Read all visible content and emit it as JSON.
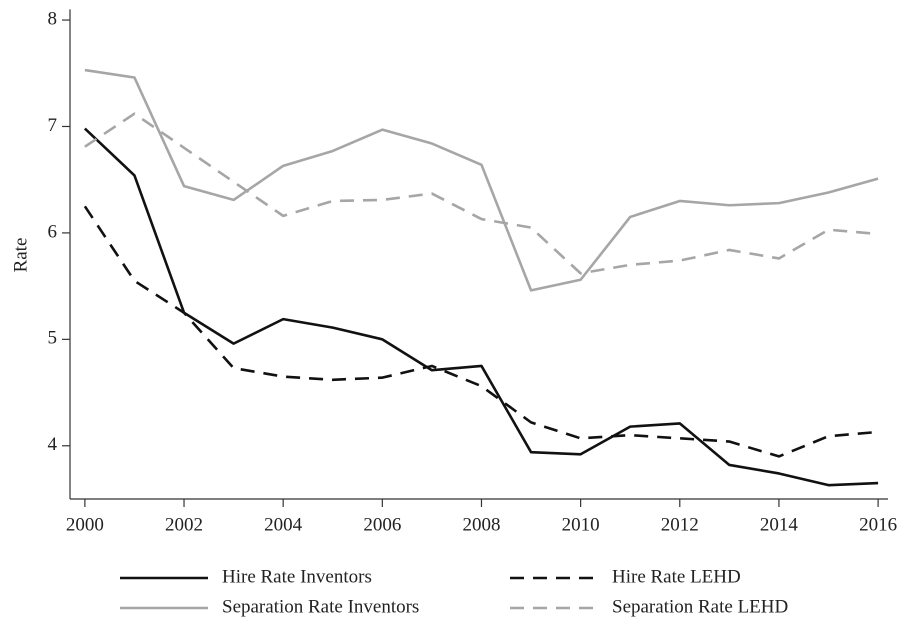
{
  "chart_data": {
    "type": "line",
    "y_label": "Rate",
    "x": [
      2000,
      2001,
      2002,
      2003,
      2004,
      2005,
      2006,
      2007,
      2008,
      2009,
      2010,
      2011,
      2012,
      2013,
      2014,
      2015,
      2016
    ],
    "series": [
      {
        "name": "Hire Rate Inventors",
        "color": "#111111",
        "line_style": "solid",
        "values": [
          6.98,
          6.54,
          5.25,
          4.96,
          5.19,
          5.11,
          5.0,
          4.71,
          4.75,
          3.94,
          3.92,
          4.18,
          4.21,
          3.82,
          3.74,
          3.63,
          3.65
        ]
      },
      {
        "name": "Hire Rate LEHD",
        "color": "#111111",
        "line_style": "dashed",
        "values": [
          6.25,
          5.55,
          5.25,
          4.73,
          4.65,
          4.62,
          4.64,
          4.75,
          4.56,
          4.22,
          4.07,
          4.1,
          4.07,
          4.04,
          3.9,
          4.09,
          4.13
        ]
      },
      {
        "name": "Separation Rate Inventors",
        "color": "#a6a6a6",
        "line_style": "solid",
        "values": [
          7.53,
          7.46,
          6.44,
          6.31,
          6.63,
          6.77,
          6.97,
          6.84,
          6.64,
          5.46,
          5.56,
          6.15,
          6.3,
          6.26,
          6.28,
          6.38,
          6.51
        ]
      },
      {
        "name": "Separation Rate LEHD",
        "color": "#a6a6a6",
        "line_style": "dashed",
        "values": [
          6.81,
          7.12,
          6.8,
          6.48,
          6.16,
          6.3,
          6.31,
          6.37,
          6.13,
          6.05,
          5.62,
          5.7,
          5.74,
          5.84,
          5.76,
          6.03,
          5.99
        ]
      }
    ],
    "xlim": [
      1999.7,
      2016.2
    ],
    "xticks": [
      2000,
      2002,
      2004,
      2006,
      2008,
      2010,
      2012,
      2014,
      2016
    ],
    "ylim": [
      3.5,
      8.1
    ],
    "yticks": [
      4,
      5,
      6,
      7,
      8
    ],
    "grid": false,
    "legend": "bottom"
  }
}
